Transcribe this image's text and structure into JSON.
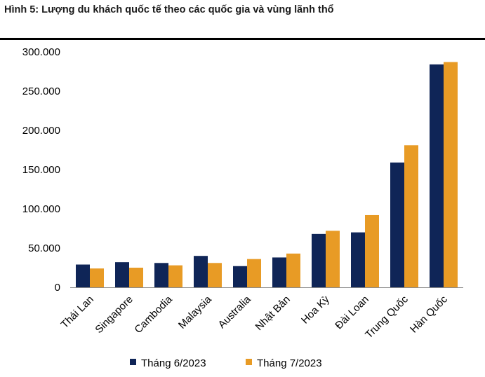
{
  "title": "Hình 5: Lượng du khách quốc tế theo các quốc gia và vùng lãnh thổ",
  "chart_data": {
    "type": "bar",
    "title": "Hình 5: Lượng du khách quốc tế theo các quốc gia và vùng lãnh thổ",
    "xlabel": "",
    "ylabel": "",
    "ylim": [
      0,
      300000
    ],
    "y_ticks": [
      0,
      50000,
      100000,
      150000,
      200000,
      250000,
      300000
    ],
    "y_tick_labels": [
      "0",
      "50.000",
      "100.000",
      "150.000",
      "200.000",
      "250.000",
      "300.000"
    ],
    "categories": [
      "Thái Lan",
      "Singapore",
      "Cambodia",
      "Malaysia",
      "Australia",
      "Nhật Bản",
      "Hoa Kỳ",
      "Đài Loan",
      "Trung Quốc",
      "Hàn Quốc"
    ],
    "series": [
      {
        "name": "Tháng 6/2023",
        "color": "#0f2557",
        "values": [
          29000,
          32000,
          31000,
          40000,
          27000,
          38000,
          68000,
          70000,
          159000,
          284000
        ]
      },
      {
        "name": "Tháng 7/2023",
        "color": "#e89b25",
        "values": [
          24000,
          25000,
          28000,
          31000,
          36000,
          43000,
          72000,
          92000,
          181000,
          287000
        ]
      }
    ],
    "grid": false,
    "legend_position": "bottom"
  }
}
